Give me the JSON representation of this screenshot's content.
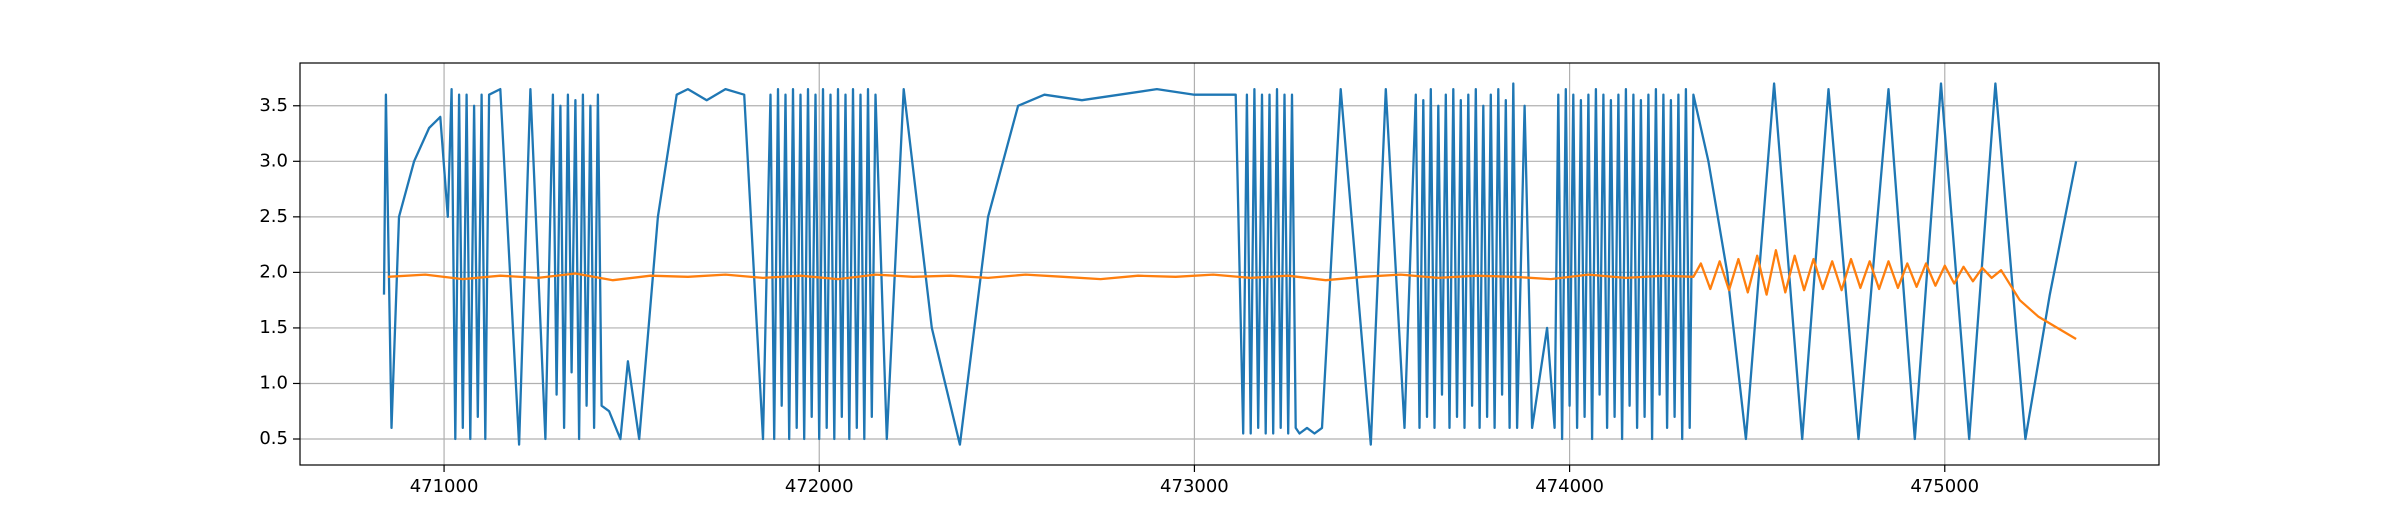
{
  "chart_data": {
    "type": "line",
    "grid": true,
    "xlim": [
      470616,
      475571
    ],
    "ylim": [
      0.266,
      3.885
    ],
    "xticks": [
      471000,
      472000,
      473000,
      474000,
      475000
    ],
    "yticks": [
      0.5,
      {
        "value": 1,
        "label": "1.0"
      },
      1.5,
      {
        "value": 2,
        "label": "2.0"
      },
      2.5,
      {
        "value": 3,
        "label": "3.0"
      },
      3.5
    ],
    "series": [
      {
        "color": "#1f77b4",
        "x": [
          470840,
          470845,
          470860,
          470880,
          470920,
          470960,
          470990,
          471010,
          471020,
          471030,
          471040,
          471050,
          471060,
          471070,
          471080,
          471090,
          471100,
          471110,
          471120,
          471150,
          471200,
          471230,
          471270,
          471290,
          471300,
          471310,
          471320,
          471330,
          471340,
          471350,
          471360,
          471370,
          471380,
          471390,
          471400,
          471410,
          471420,
          471440,
          471470,
          471490,
          471520,
          471570,
          471620,
          471650,
          471700,
          471750,
          471800,
          471850,
          471870,
          471880,
          471890,
          471900,
          471910,
          471920,
          471930,
          471940,
          471950,
          471960,
          471970,
          471980,
          471990,
          472000,
          472010,
          472020,
          472030,
          472040,
          472050,
          472060,
          472070,
          472080,
          472090,
          472100,
          472110,
          472120,
          472130,
          472140,
          472150,
          472180,
          472225,
          472300,
          472375,
          472450,
          472530,
          472600,
          472700,
          472800,
          472900,
          473000,
          473110,
          473130,
          473140,
          473150,
          473160,
          473170,
          473180,
          473190,
          473200,
          473210,
          473220,
          473230,
          473240,
          473250,
          473260,
          473270,
          473280,
          473300,
          473320,
          473340,
          473390,
          473470,
          473510,
          473560,
          473590,
          473600,
          473610,
          473620,
          473630,
          473640,
          473650,
          473660,
          473670,
          473680,
          473690,
          473700,
          473710,
          473720,
          473730,
          473740,
          473750,
          473760,
          473770,
          473780,
          473790,
          473800,
          473810,
          473820,
          473830,
          473840,
          473850,
          473860,
          473880,
          473900,
          473940,
          473960,
          473970,
          473980,
          473990,
          474000,
          474010,
          474020,
          474030,
          474040,
          474050,
          474060,
          474070,
          474080,
          474090,
          474100,
          474110,
          474120,
          474130,
          474140,
          474150,
          474160,
          474170,
          474180,
          474190,
          474200,
          474210,
          474220,
          474230,
          474240,
          474250,
          474260,
          474270,
          474280,
          474290,
          474300,
          474310,
          474320,
          474330,
          474370,
          474420,
          474470,
          474545,
          474620,
          474690,
          474770,
          474850,
          474920,
          474990,
          475065,
          475135,
          475215,
          475280,
          475350
        ],
        "values": [
          1.8,
          3.6,
          0.6,
          2.5,
          3.0,
          3.3,
          3.4,
          2.5,
          3.65,
          0.5,
          3.6,
          0.6,
          3.6,
          0.5,
          3.5,
          0.7,
          3.6,
          0.5,
          3.6,
          3.65,
          0.45,
          3.65,
          0.5,
          3.6,
          0.9,
          3.5,
          0.6,
          3.6,
          1.1,
          3.55,
          0.5,
          3.6,
          0.8,
          3.5,
          0.6,
          3.6,
          0.8,
          0.75,
          0.5,
          1.2,
          0.5,
          2.5,
          3.6,
          3.65,
          3.55,
          3.65,
          3.6,
          0.5,
          3.6,
          0.5,
          3.65,
          0.8,
          3.6,
          0.5,
          3.65,
          0.6,
          3.6,
          0.5,
          3.65,
          0.7,
          3.6,
          0.5,
          3.65,
          0.6,
          3.6,
          0.5,
          3.65,
          0.7,
          3.6,
          0.5,
          3.65,
          0.6,
          3.6,
          0.5,
          3.65,
          0.7,
          3.6,
          0.5,
          3.65,
          1.5,
          0.45,
          2.5,
          3.5,
          3.6,
          3.55,
          3.6,
          3.65,
          3.6,
          3.6,
          0.55,
          3.6,
          0.55,
          3.65,
          0.6,
          3.6,
          0.55,
          3.6,
          0.55,
          3.65,
          0.6,
          3.6,
          0.55,
          3.6,
          0.6,
          0.55,
          0.6,
          0.55,
          0.6,
          3.65,
          0.45,
          3.65,
          0.6,
          3.6,
          0.6,
          3.55,
          0.7,
          3.65,
          0.6,
          3.5,
          0.9,
          3.6,
          0.6,
          3.65,
          0.7,
          3.55,
          0.6,
          3.6,
          0.8,
          3.65,
          0.6,
          3.5,
          0.7,
          3.6,
          0.6,
          3.65,
          0.9,
          3.55,
          0.6,
          3.7,
          0.6,
          3.5,
          0.6,
          1.5,
          0.6,
          3.6,
          0.5,
          3.65,
          0.8,
          3.6,
          0.6,
          3.55,
          0.7,
          3.6,
          0.5,
          3.65,
          0.9,
          3.6,
          0.6,
          3.55,
          0.7,
          3.6,
          0.5,
          3.65,
          0.8,
          3.6,
          0.6,
          3.55,
          0.7,
          3.6,
          0.5,
          3.65,
          0.9,
          3.6,
          0.6,
          3.55,
          0.7,
          3.6,
          0.5,
          3.65,
          0.6,
          3.6,
          3.0,
          2.0,
          0.5,
          3.7,
          0.5,
          3.65,
          0.5,
          3.65,
          0.5,
          3.7,
          0.5,
          3.7,
          0.5,
          1.8,
          3.0
        ]
      },
      {
        "color": "#ff7f0e",
        "x": [
          470850,
          470950,
          471050,
          471150,
          471250,
          471350,
          471450,
          471550,
          471650,
          471750,
          471850,
          471950,
          472050,
          472150,
          472250,
          472350,
          472450,
          472550,
          472650,
          472750,
          472850,
          472950,
          473050,
          473150,
          473250,
          473350,
          473450,
          473550,
          473650,
          473750,
          473850,
          473950,
          474050,
          474150,
          474250,
          474330,
          474350,
          474375,
          474400,
          474425,
          474450,
          474475,
          474500,
          474525,
          474550,
          474575,
          474600,
          474625,
          474650,
          474675,
          474700,
          474725,
          474750,
          474775,
          474800,
          474825,
          474850,
          474875,
          474900,
          474925,
          474950,
          474975,
          475000,
          475025,
          475050,
          475075,
          475100,
          475125,
          475150,
          475200,
          475250,
          475300,
          475350
        ],
        "values": [
          1.96,
          1.98,
          1.94,
          1.97,
          1.95,
          1.99,
          1.93,
          1.97,
          1.96,
          1.98,
          1.95,
          1.97,
          1.94,
          1.98,
          1.96,
          1.97,
          1.95,
          1.98,
          1.96,
          1.94,
          1.97,
          1.96,
          1.98,
          1.95,
          1.97,
          1.93,
          1.96,
          1.98,
          1.95,
          1.97,
          1.96,
          1.94,
          1.98,
          1.95,
          1.97,
          1.96,
          2.08,
          1.85,
          2.1,
          1.84,
          2.12,
          1.82,
          2.15,
          1.8,
          2.2,
          1.82,
          2.15,
          1.84,
          2.12,
          1.85,
          2.1,
          1.84,
          2.12,
          1.86,
          2.1,
          1.85,
          2.1,
          1.86,
          2.08,
          1.87,
          2.08,
          1.88,
          2.06,
          1.9,
          2.05,
          1.92,
          2.04,
          1.95,
          2.02,
          1.75,
          1.6,
          1.5,
          1.4
        ]
      }
    ]
  }
}
